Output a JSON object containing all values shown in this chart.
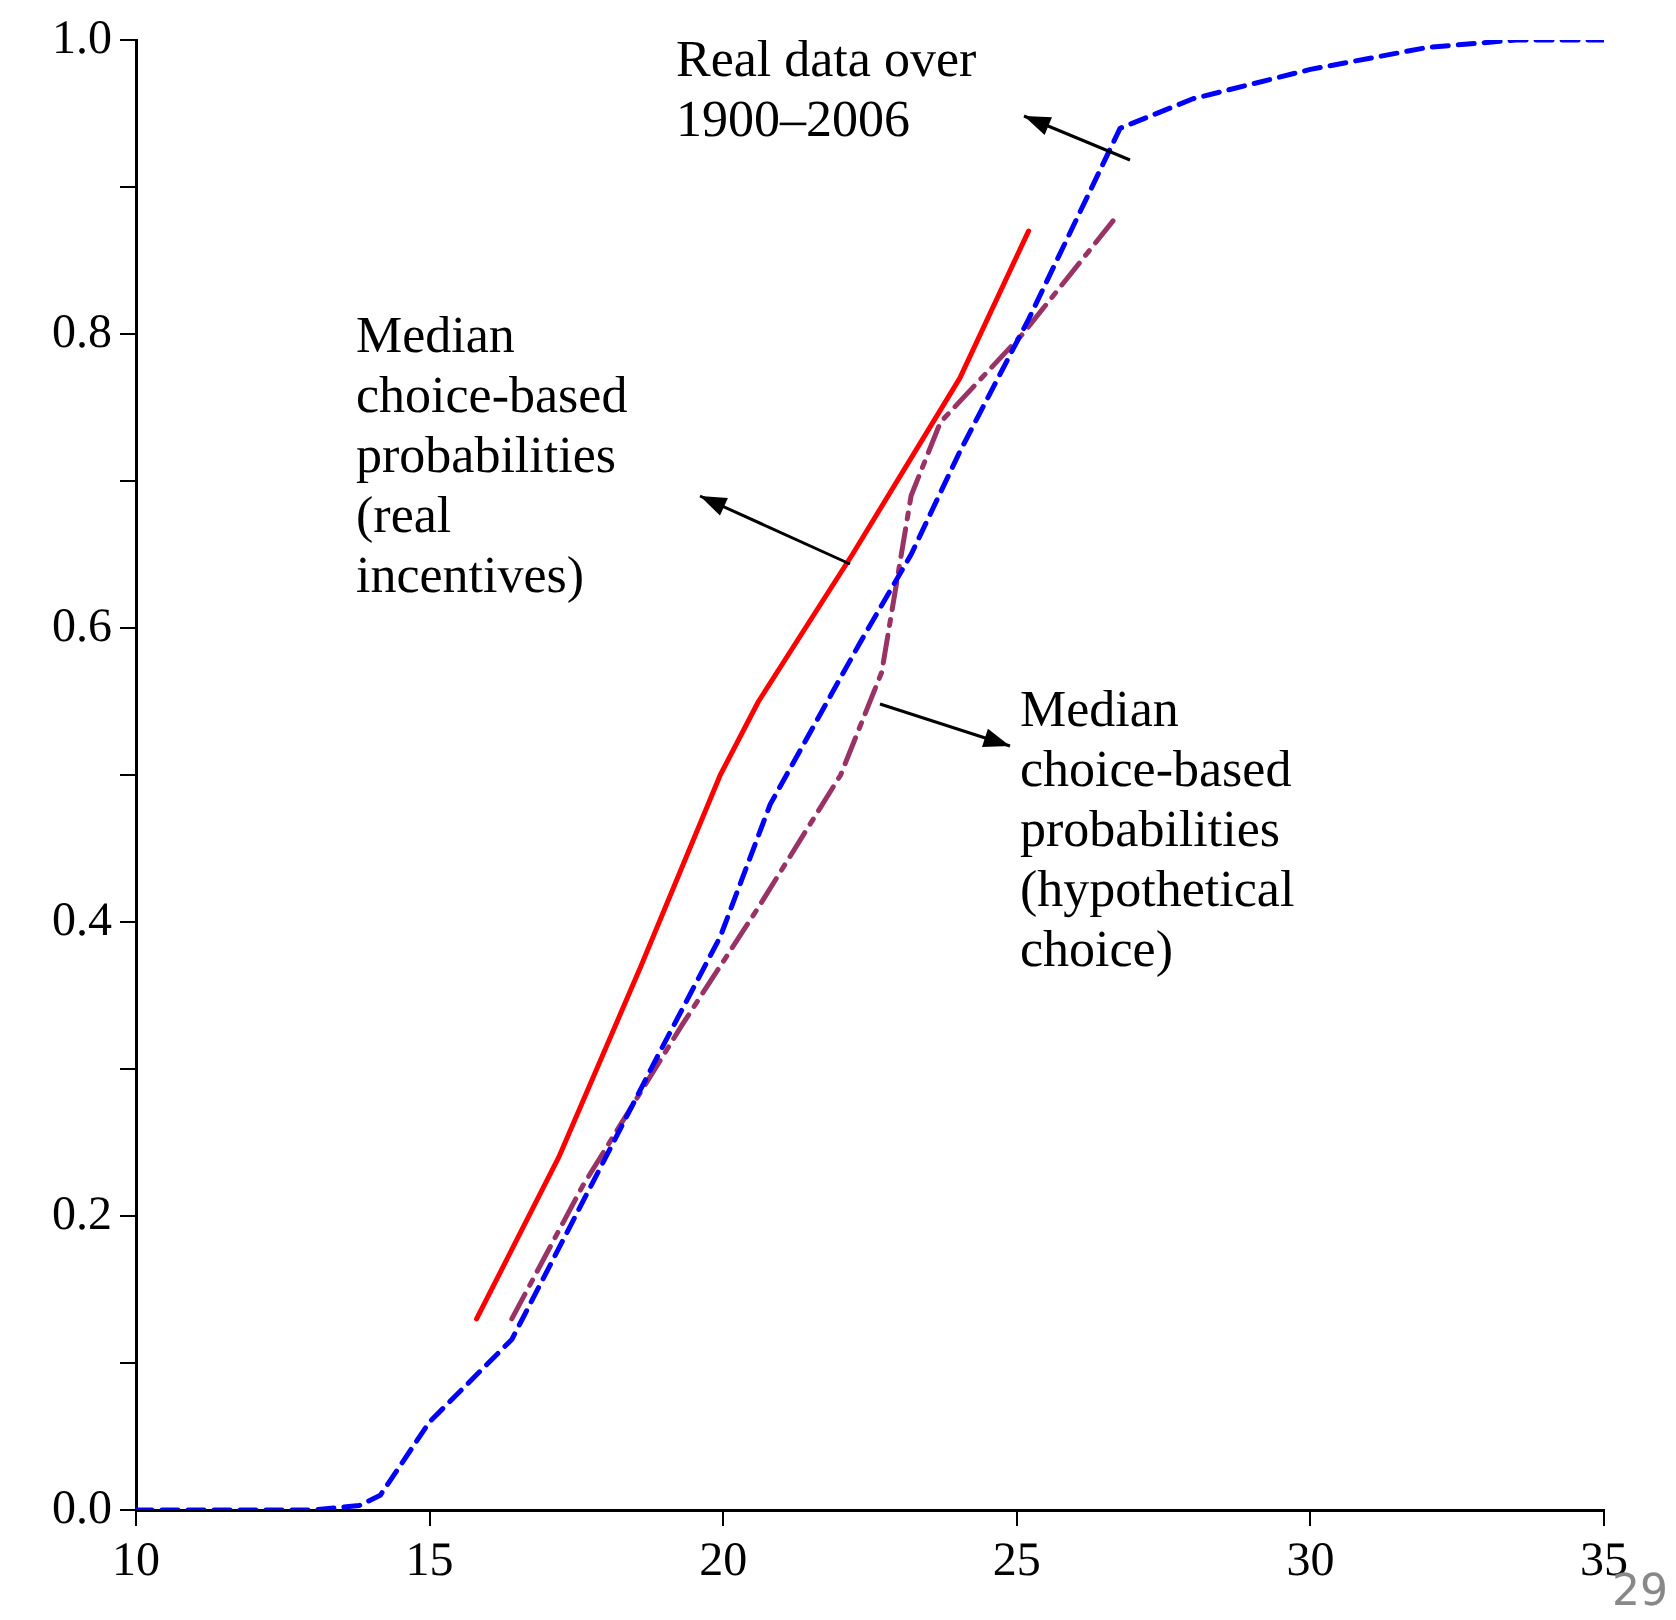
{
  "chart_data": {
    "type": "line",
    "xlim": [
      10,
      35
    ],
    "xticks": [
      10,
      15,
      20,
      25,
      30,
      35
    ],
    "ylim": [
      0,
      1
    ],
    "yticks": [
      {
        "value": 0,
        "label": "0.0"
      },
      {
        "value": 0.1,
        "label": null
      },
      0.2,
      {
        "value": 0.3,
        "label": null
      },
      0.4,
      {
        "value": 0.5,
        "label": null
      },
      0.6,
      {
        "value": 0.7,
        "label": null
      },
      0.8,
      {
        "value": 0.9,
        "label": null
      },
      {
        "value": 1,
        "label": "1.0"
      }
    ],
    "grid": false,
    "legend": false,
    "marker": "none",
    "series": [
      {
        "color": "#ff0000",
        "line_style": "solid",
        "x": [
          15.8,
          17.2,
          18.6,
          19.95,
          20.6,
          22.2,
          24.03,
          25.2
        ],
        "values": [
          0.13,
          0.24,
          0.37,
          0.5,
          0.55,
          0.65,
          0.77,
          0.87
        ]
      },
      {
        "color": "#0000ff",
        "line_style": "dashed",
        "x": [
          10,
          13,
          13.8,
          14.16,
          15,
          16.4,
          18,
          18.9,
          19.95,
          20.8,
          22.33,
          23.2,
          24.03,
          25.2,
          26.76,
          28,
          30,
          32,
          33.5,
          35
        ],
        "values": [
          0,
          0,
          0.003,
          0.01,
          0.06,
          0.116,
          0.24,
          0.31,
          0.39,
          0.48,
          0.59,
          0.65,
          0.72,
          0.81,
          0.94,
          0.96,
          0.98,
          0.995,
          1,
          1
        ]
      },
      {
        "color": "#993366",
        "line_style": "dashdot",
        "x": [
          16.4,
          17.6,
          19.3,
          20.6,
          22,
          22.7,
          23.2,
          23.7,
          25.1,
          26.7
        ],
        "values": [
          0.13,
          0.22,
          0.33,
          0.41,
          0.5,
          0.57,
          0.69,
          0.74,
          0.8,
          0.88
        ]
      }
    ],
    "annotations": [
      "Real data over\n1900–2006",
      "Median\nchoice-based\nprobabilities\n(real\nincentives)",
      "Median\nchoice-based\nprobabilities\n(hypothetical\nchoice)",
      "29"
    ]
  }
}
